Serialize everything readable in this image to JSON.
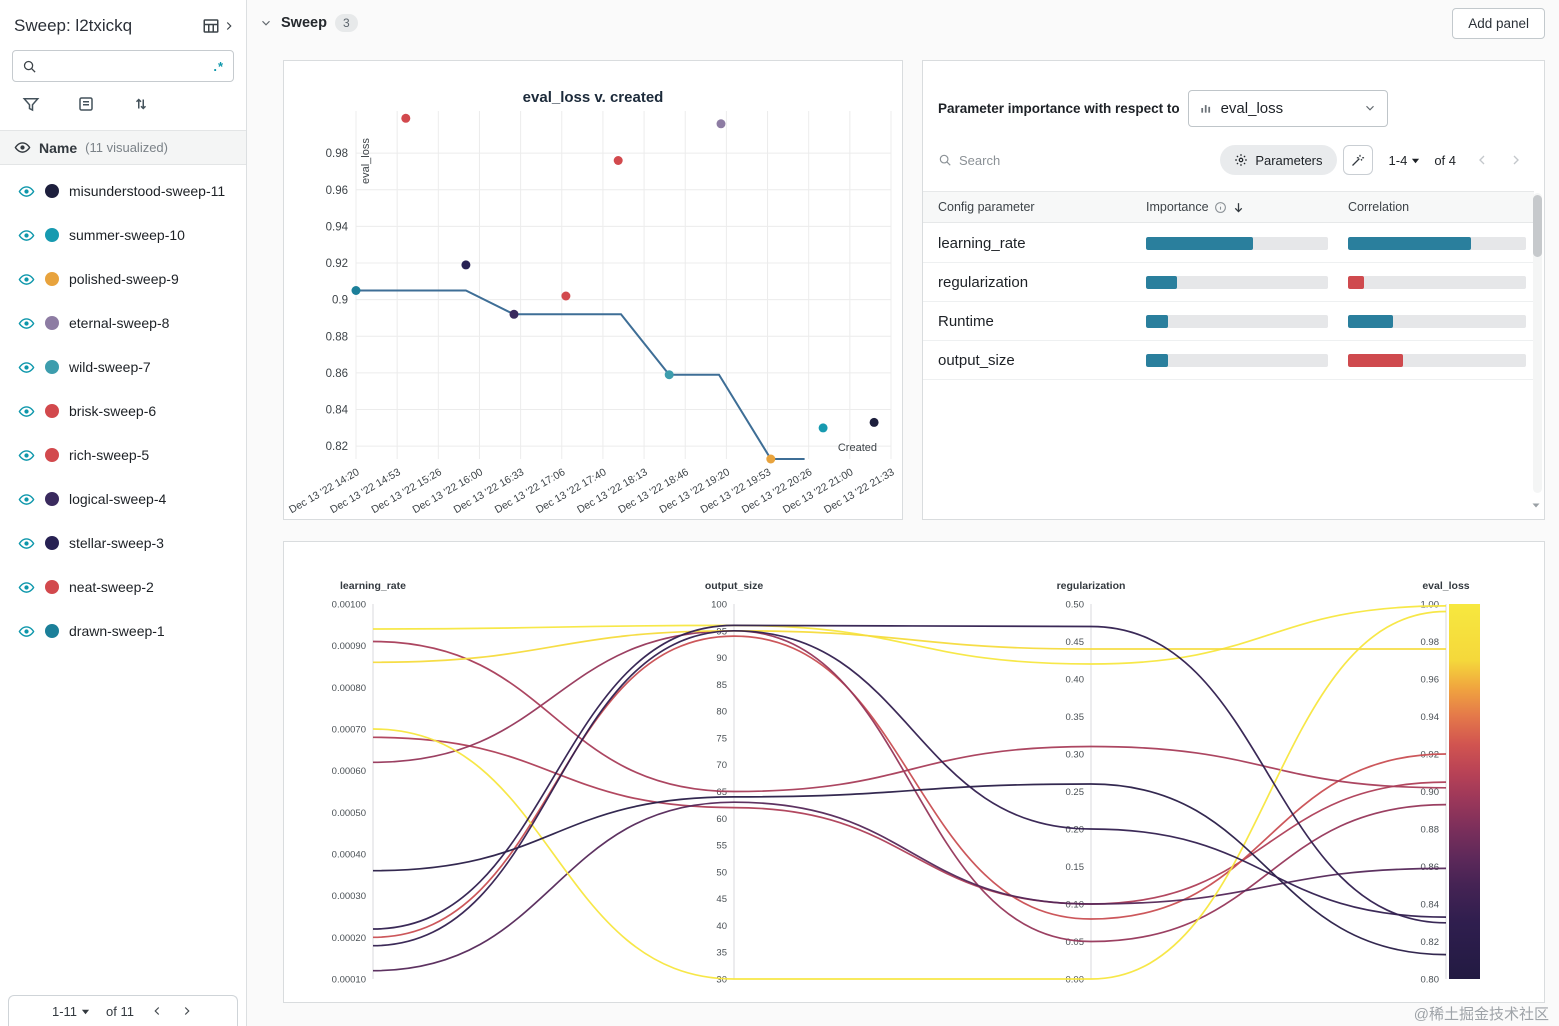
{
  "sidebar": {
    "title": "Sweep: l2txickq",
    "search": {
      "regex_label": ".*"
    },
    "section": {
      "label": "Name",
      "count_label": "(11 visualized)"
    },
    "runs": [
      {
        "name": "misunderstood-sweep-11",
        "color": "#1d1f3d"
      },
      {
        "name": "summer-sweep-10",
        "color": "#179ab0"
      },
      {
        "name": "polished-sweep-9",
        "color": "#e8a33d"
      },
      {
        "name": "eternal-sweep-8",
        "color": "#8d7ca3"
      },
      {
        "name": "wild-sweep-7",
        "color": "#3d9dad"
      },
      {
        "name": "brisk-sweep-6",
        "color": "#d2494d"
      },
      {
        "name": "rich-sweep-5",
        "color": "#d2494d"
      },
      {
        "name": "logical-sweep-4",
        "color": "#3a2a5e"
      },
      {
        "name": "stellar-sweep-3",
        "color": "#272153"
      },
      {
        "name": "neat-sweep-2",
        "color": "#d2494d"
      },
      {
        "name": "drawn-sweep-1",
        "color": "#1b7f99"
      }
    ],
    "pagination": {
      "range": "1-11",
      "of": "of 11"
    }
  },
  "topbar": {
    "section": "Sweep",
    "badge": "3",
    "add_panel": "Add panel"
  },
  "importance": {
    "title": "Parameter importance with respect to",
    "metric": "eval_loss",
    "search_placeholder": "Search",
    "parameters_button": "Parameters",
    "pagination": {
      "range": "1-4",
      "of": "of 4"
    },
    "columns": {
      "parameter": "Config parameter",
      "importance": "Importance",
      "correlation": "Correlation"
    },
    "importance_color": "#2a7f9d",
    "rows": [
      {
        "name": "learning_rate",
        "importance": 0.59,
        "correlation": 0.69,
        "correlation_color": "#2a7f9d"
      },
      {
        "name": "regularization",
        "importance": 0.17,
        "correlation": 0.09,
        "correlation_color": "#cf4a4e"
      },
      {
        "name": "Runtime",
        "importance": 0.12,
        "correlation": 0.25,
        "correlation_color": "#2a7f9d"
      },
      {
        "name": "output_size",
        "importance": 0.12,
        "correlation": 0.31,
        "correlation_color": "#cf4a4e"
      }
    ]
  },
  "chart_data": [
    {
      "type": "scatter",
      "title": "eval_loss v. created",
      "ylabel": "eval_loss",
      "xlabel": "Created",
      "ylim": [
        0.813,
        1.003
      ],
      "grid": true,
      "y_ticks": [
        {
          "label": "0.98",
          "value": 0.98
        },
        {
          "label": "0.96",
          "value": 0.96
        },
        {
          "label": "0.94",
          "value": 0.94
        },
        {
          "label": "0.92",
          "value": 0.92
        },
        {
          "label": "0.9",
          "value": 0.9
        },
        {
          "label": "0.88",
          "value": 0.88
        },
        {
          "label": "0.86",
          "value": 0.86
        },
        {
          "label": "0.84",
          "value": 0.84
        },
        {
          "label": "0.82",
          "value": 0.82
        }
      ],
      "x_ticks": [
        "Dec 13 '22 14:20",
        "Dec 13 '22 14:53",
        "Dec 13 '22 15:26",
        "Dec 13 '22 16:00",
        "Dec 13 '22 16:33",
        "Dec 13 '22 17:06",
        "Dec 13 '22 17:40",
        "Dec 13 '22 18:13",
        "Dec 13 '22 18:46",
        "Dec 13 '22 19:20",
        "Dec 13 '22 19:53",
        "Dec 13 '22 20:26",
        "Dec 13 '22 21:00",
        "Dec 13 '22 21:33"
      ],
      "points": [
        {
          "t": 0.0,
          "y": 0.905,
          "color": "#1b7f99",
          "run": "drawn-sweep-1"
        },
        {
          "t": 1.21,
          "y": 0.999,
          "color": "#d2494d",
          "run": "neat-sweep-2"
        },
        {
          "t": 2.67,
          "y": 0.919,
          "color": "#272153",
          "run": "stellar-sweep-3"
        },
        {
          "t": 3.84,
          "y": 0.892,
          "color": "#3a2a5e",
          "run": "logical-sweep-4"
        },
        {
          "t": 5.1,
          "y": 0.902,
          "color": "#d2494d",
          "run": "rich-sweep-5"
        },
        {
          "t": 6.37,
          "y": 0.976,
          "color": "#d2494d",
          "run": "brisk-sweep-6"
        },
        {
          "t": 7.61,
          "y": 0.859,
          "color": "#3d9dad",
          "run": "wild-sweep-7"
        },
        {
          "t": 8.87,
          "y": 0.996,
          "color": "#8d7ca3",
          "run": "eternal-sweep-8"
        },
        {
          "t": 10.08,
          "y": 0.813,
          "color": "#e8a33d",
          "run": "polished-sweep-9"
        },
        {
          "t": 11.35,
          "y": 0.83,
          "color": "#179ab0",
          "run": "summer-sweep-10"
        },
        {
          "t": 12.59,
          "y": 0.833,
          "color": "#1d1f3d",
          "run": "misunderstood-sweep-11"
        }
      ],
      "line": {
        "color": "#3e6e96",
        "points": [
          [
            0,
            0.905
          ],
          [
            2.67,
            0.905
          ],
          [
            3.84,
            0.892
          ],
          [
            6.44,
            0.892
          ],
          [
            7.61,
            0.859
          ],
          [
            8.82,
            0.859
          ],
          [
            10.08,
            0.813
          ],
          [
            10.9,
            0.813
          ]
        ]
      }
    },
    {
      "type": "parallel",
      "axes": [
        {
          "name": "learning_rate",
          "min": 0.0001,
          "max": 0.001,
          "ticks": [
            "0.00100",
            "0.00090",
            "0.00080",
            "0.00070",
            "0.00060",
            "0.00050",
            "0.00040",
            "0.00030",
            "0.00020",
            "0.00010"
          ]
        },
        {
          "name": "output_size",
          "min": 30,
          "max": 100,
          "ticks": [
            "100",
            "95",
            "90",
            "85",
            "80",
            "75",
            "70",
            "65",
            "60",
            "55",
            "50",
            "45",
            "40",
            "35",
            "30"
          ]
        },
        {
          "name": "regularization",
          "min": 0,
          "max": 0.5,
          "ticks": [
            "0.50",
            "0.45",
            "0.40",
            "0.35",
            "0.30",
            "0.25",
            "0.20",
            "0.15",
            "0.10",
            "0.05",
            "0.00"
          ]
        },
        {
          "name": "eval_loss",
          "min": 0.8,
          "max": 1.0,
          "ticks": [
            "1.00",
            "0.98",
            "0.96",
            "0.94",
            "0.92",
            "0.90",
            "0.88",
            "0.86",
            "0.84",
            "0.82",
            "0.80"
          ],
          "has_colorbar": true
        }
      ],
      "color_scale": {
        "metric": "eval_loss",
        "min": 0.8,
        "max": 1.0,
        "stops": [
          {
            "value": 1.0,
            "color": "#f7e83f"
          },
          {
            "value": 0.97,
            "color": "#f5d83b"
          },
          {
            "value": 0.955,
            "color": "#f0a43f"
          },
          {
            "value": 0.94,
            "color": "#e4784a"
          },
          {
            "value": 0.925,
            "color": "#d15450"
          },
          {
            "value": 0.91,
            "color": "#b84256"
          },
          {
            "value": 0.895,
            "color": "#9a375a"
          },
          {
            "value": 0.88,
            "color": "#7b2f5b"
          },
          {
            "value": 0.865,
            "color": "#5e295a"
          },
          {
            "value": 0.85,
            "color": "#452354"
          },
          {
            "value": 0.83,
            "color": "#2f1e4e"
          },
          {
            "value": 0.8,
            "color": "#221a42"
          }
        ]
      },
      "runs": [
        {
          "name": "drawn-sweep-1",
          "values": [
            0.00068,
            62,
            0.1,
            0.905
          ]
        },
        {
          "name": "neat-sweep-2",
          "values": [
            0.00094,
            96,
            0.42,
            0.999
          ]
        },
        {
          "name": "stellar-sweep-3",
          "values": [
            0.0002,
            94,
            0.08,
            0.92
          ]
        },
        {
          "name": "logical-sweep-4",
          "values": [
            0.00062,
            95,
            0.05,
            0.893
          ]
        },
        {
          "name": "rich-sweep-5",
          "values": [
            0.00091,
            65,
            0.31,
            0.902
          ]
        },
        {
          "name": "brisk-sweep-6",
          "values": [
            0.00086,
            95,
            0.44,
            0.976
          ]
        },
        {
          "name": "wild-sweep-7",
          "values": [
            0.00012,
            63,
            0.1,
            0.859
          ]
        },
        {
          "name": "eternal-sweep-8",
          "values": [
            0.0007,
            30,
            0.0,
            0.996
          ]
        },
        {
          "name": "polished-sweep-9",
          "values": [
            0.00036,
            64,
            0.26,
            0.813
          ]
        },
        {
          "name": "summer-sweep-10",
          "values": [
            0.00022,
            96,
            0.47,
            0.83
          ]
        },
        {
          "name": "misunderstood-sweep-11",
          "values": [
            0.00018,
            95,
            0.2,
            0.833
          ]
        }
      ]
    }
  ],
  "watermark": "@稀土掘金技术社区"
}
